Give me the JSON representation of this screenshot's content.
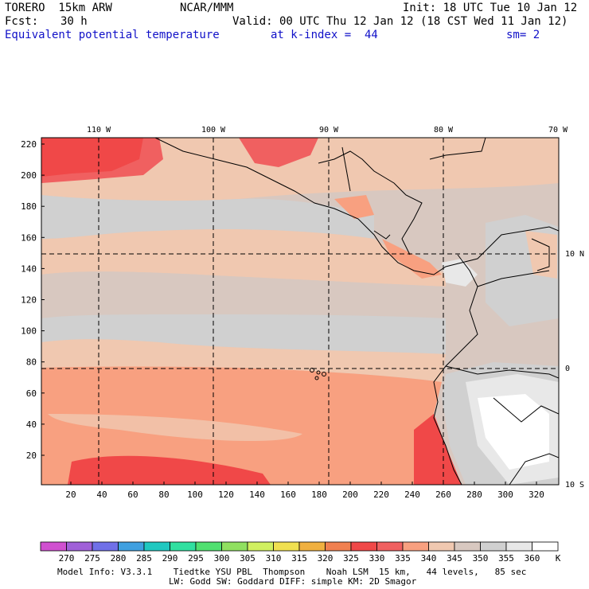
{
  "header": {
    "model": "TORERO  15km ARW",
    "center": "NCAR/MMM",
    "init": "Init: 18 UTC Tue 10 Jan 12",
    "fcst_label": "Fcst:",
    "fcst_value": "30 h",
    "valid": "Valid: 00 UTC Thu 12 Jan 12 (18 CST Wed 11 Jan 12)",
    "field": "Equivalent potential temperature",
    "level": "at k-index =  44",
    "smooth": "sm= 2"
  },
  "map": {
    "lon_labels": [
      "110 W",
      "100 W",
      "90 W",
      "80 W",
      "70 W"
    ],
    "lat_labels": [
      "10 N",
      "0",
      "10 S"
    ],
    "y_ticks": [
      "220",
      "200",
      "180",
      "160",
      "140",
      "120",
      "100",
      "80",
      "60",
      "40",
      "20"
    ],
    "x_ticks": [
      "20",
      "40",
      "60",
      "80",
      "100",
      "120",
      "140",
      "160",
      "180",
      "200",
      "220",
      "240",
      "260",
      "280",
      "300",
      "320"
    ]
  },
  "colorbar": {
    "labels": [
      "270",
      "275",
      "280",
      "285",
      "290",
      "295",
      "300",
      "305",
      "310",
      "315",
      "320",
      "325",
      "330",
      "335",
      "340",
      "345",
      "350",
      "355",
      "360"
    ],
    "unit": "K",
    "colors": [
      "#d050d0",
      "#a060d8",
      "#7070e8",
      "#40a0e0",
      "#20c8c0",
      "#30e0a0",
      "#50e070",
      "#90e060",
      "#d0f060",
      "#f0e050",
      "#f0b040",
      "#f08050",
      "#f04848",
      "#f06060",
      "#f8a080",
      "#f0c8b0",
      "#d8c8c0",
      "#d0d0d0",
      "#e8e8e8",
      "#ffffff"
    ]
  },
  "footer": {
    "line1": "Model Info: V3.3.1    Tiedtke YSU PBL  Thompson    Noah LSM  15 km,   44 levels,   85 sec",
    "line2": "LW: Godd SW: Goddard DIFF: simple KM: 2D Smagor"
  }
}
